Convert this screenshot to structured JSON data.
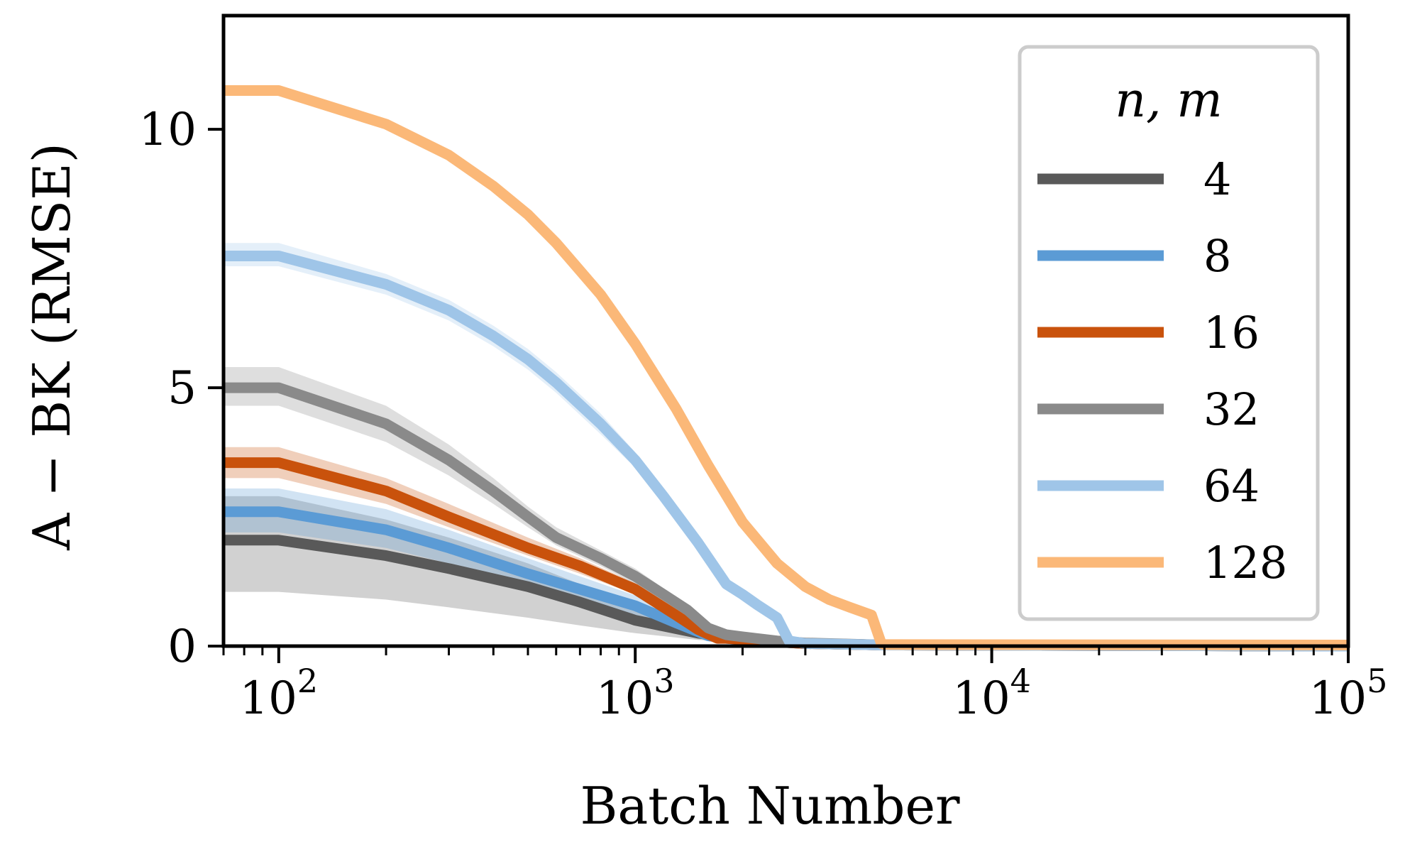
{
  "chart_data": {
    "type": "line",
    "xscale": "log",
    "xlabel": "Batch Number",
    "ylabel": "A − BK (RMSE)",
    "xlim": [
      70,
      100000
    ],
    "ylim": [
      0,
      12.2
    ],
    "xticks": [
      100,
      1000,
      10000,
      100000
    ],
    "xtick_base": "10",
    "xtick_exponents": [
      "2",
      "3",
      "4",
      "5"
    ],
    "yticks": [
      0,
      5,
      10
    ],
    "ytick_labels": [
      "0",
      "5",
      "10"
    ],
    "legend": {
      "title": "n, m",
      "placement": "top-right"
    },
    "series": [
      {
        "name": "4",
        "color": "#595959",
        "x": [
          70,
          100,
          200,
          300,
          500,
          700,
          1000,
          1500,
          1800,
          2500,
          3000,
          5000,
          100000
        ],
        "y": [
          2.05,
          2.05,
          1.75,
          1.5,
          1.15,
          0.85,
          0.5,
          0.25,
          0.18,
          0.08,
          0.05,
          0.02,
          0.0
        ],
        "lower": [
          1.05,
          1.05,
          0.9,
          0.75,
          0.55,
          0.4,
          0.25,
          0.12,
          0.08,
          0.04,
          0.02,
          0.01,
          0.0
        ],
        "upper": [
          2.9,
          2.9,
          2.45,
          2.1,
          1.6,
          1.2,
          0.8,
          0.4,
          0.28,
          0.12,
          0.07,
          0.03,
          0.02
        ]
      },
      {
        "name": "8",
        "color": "#5b9bd5",
        "x": [
          70,
          100,
          200,
          300,
          500,
          700,
          1000,
          1300,
          1600,
          1800,
          2500,
          3000,
          5000,
          100000
        ],
        "y": [
          2.6,
          2.6,
          2.25,
          1.9,
          1.4,
          1.1,
          0.78,
          0.45,
          0.2,
          0.15,
          0.08,
          0.05,
          0.02,
          0.0
        ],
        "lower": [
          2.2,
          2.2,
          1.9,
          1.6,
          1.15,
          0.9,
          0.6,
          0.32,
          0.12,
          0.09,
          0.05,
          0.03,
          0.01,
          0.0
        ],
        "upper": [
          3.05,
          3.05,
          2.65,
          2.25,
          1.7,
          1.35,
          0.98,
          0.6,
          0.3,
          0.22,
          0.12,
          0.07,
          0.03,
          0.02
        ]
      },
      {
        "name": "16",
        "color": "#c9520c",
        "x": [
          70,
          100,
          200,
          300,
          500,
          700,
          1000,
          1300,
          1500,
          1700,
          1800,
          2500,
          3000,
          5000,
          100000
        ],
        "y": [
          3.55,
          3.55,
          3.0,
          2.5,
          1.9,
          1.55,
          1.1,
          0.6,
          0.32,
          0.15,
          0.15,
          0.08,
          0.05,
          0.02,
          0.0
        ],
        "lower": [
          3.25,
          3.25,
          2.75,
          2.3,
          1.75,
          1.4,
          1.0,
          0.52,
          0.26,
          0.1,
          0.1,
          0.05,
          0.03,
          0.01,
          0.0
        ],
        "upper": [
          3.85,
          3.85,
          3.25,
          2.75,
          2.1,
          1.7,
          1.22,
          0.7,
          0.4,
          0.2,
          0.2,
          0.12,
          0.07,
          0.03,
          0.02
        ]
      },
      {
        "name": "32",
        "color": "#8a8a8a",
        "x": [
          70,
          100,
          200,
          300,
          400,
          500,
          600,
          800,
          1000,
          1200,
          1400,
          1600,
          1800,
          2000,
          2500,
          3000,
          5000,
          100000
        ],
        "y": [
          5.0,
          5.0,
          4.3,
          3.6,
          3.0,
          2.5,
          2.1,
          1.7,
          1.35,
          1.0,
          0.7,
          0.35,
          0.22,
          0.18,
          0.1,
          0.06,
          0.02,
          0.0
        ],
        "lower": [
          4.65,
          4.65,
          3.95,
          3.3,
          2.75,
          2.3,
          1.95,
          1.55,
          1.2,
          0.88,
          0.6,
          0.28,
          0.16,
          0.12,
          0.06,
          0.03,
          0.01,
          0.0
        ],
        "upper": [
          5.4,
          5.4,
          4.65,
          3.9,
          3.25,
          2.7,
          2.3,
          1.85,
          1.5,
          1.12,
          0.8,
          0.42,
          0.3,
          0.24,
          0.14,
          0.09,
          0.03,
          0.02
        ]
      },
      {
        "name": "64",
        "color": "#9fc5e8",
        "x": [
          70,
          100,
          200,
          300,
          400,
          500,
          600,
          800,
          1000,
          1200,
          1500,
          1800,
          2000,
          2200,
          2500,
          2700,
          3000,
          5000,
          100000
        ],
        "y": [
          7.55,
          7.55,
          7.0,
          6.5,
          6.0,
          5.55,
          5.1,
          4.3,
          3.6,
          2.9,
          2.0,
          1.2,
          1.0,
          0.8,
          0.55,
          0.1,
          0.05,
          0.02,
          0.0
        ],
        "lower": [
          7.35,
          7.35,
          6.8,
          6.3,
          5.8,
          5.35,
          4.9,
          4.1,
          3.45,
          2.75,
          1.88,
          1.1,
          0.9,
          0.72,
          0.48,
          0.06,
          0.03,
          0.01,
          0.0
        ],
        "upper": [
          7.8,
          7.8,
          7.2,
          6.7,
          6.2,
          5.75,
          5.3,
          4.5,
          3.75,
          3.05,
          2.12,
          1.3,
          1.1,
          0.88,
          0.62,
          0.14,
          0.07,
          0.03,
          0.02
        ]
      },
      {
        "name": "128",
        "color": "#fbb878",
        "x": [
          70,
          100,
          200,
          300,
          400,
          500,
          600,
          800,
          1000,
          1300,
          1600,
          2000,
          2500,
          3000,
          3500,
          4000,
          4600,
          4900,
          5000,
          100000
        ],
        "y": [
          10.75,
          10.75,
          10.1,
          9.5,
          8.9,
          8.35,
          7.8,
          6.8,
          5.85,
          4.6,
          3.5,
          2.4,
          1.6,
          1.15,
          0.9,
          0.75,
          0.6,
          0.05,
          0.03,
          0.02
        ],
        "lower": [
          10.65,
          10.65,
          10.0,
          9.4,
          8.8,
          8.25,
          7.7,
          6.7,
          5.75,
          4.5,
          3.4,
          2.3,
          1.5,
          1.05,
          0.8,
          0.65,
          0.5,
          0.02,
          0.01,
          0.0
        ],
        "upper": [
          10.85,
          10.85,
          10.2,
          9.6,
          9.0,
          8.45,
          7.9,
          6.9,
          5.95,
          4.7,
          3.6,
          2.5,
          1.7,
          1.25,
          1.0,
          0.85,
          0.7,
          0.08,
          0.05,
          0.04
        ]
      }
    ]
  }
}
